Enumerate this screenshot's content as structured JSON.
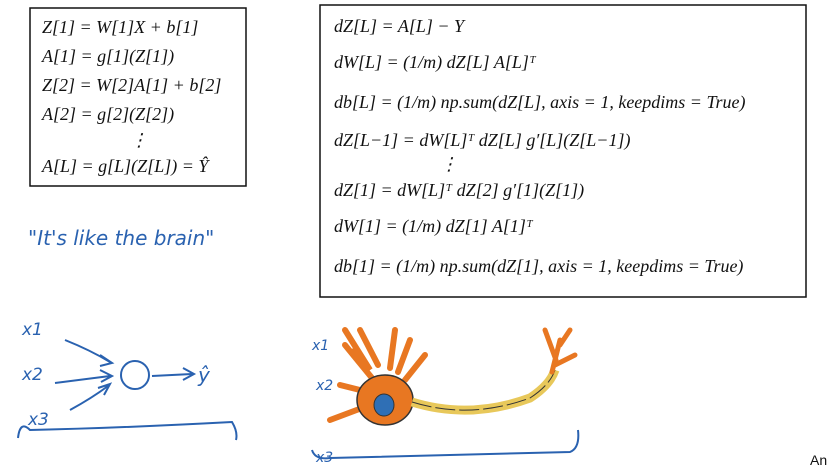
{
  "forward": {
    "lines": [
      "Z[1] = W[1]X + b[1]",
      "A[1] = g[1](Z[1])",
      "Z[2] = W[2]A[1] + b[2]",
      "A[2] = g[2](Z[2])",
      "⋮",
      "A[L] = g[L](Z[L]) = Ŷ"
    ]
  },
  "backward": {
    "lines": [
      "dZ[L] = A[L] − Y",
      "dW[L] = (1/m) dZ[L] A[L]ᵀ",
      "db[L] = (1/m) np.sum(dZ[L], axis = 1, keepdims = True)",
      "dZ[L−1] = dW[L]ᵀ dZ[L] g′[L](Z[L−1])",
      "⋮",
      "dZ[1] = dW[L]ᵀ dZ[2] g′[1](Z[1])",
      "dW[1] = (1/m) dZ[1] A[1]ᵀ",
      "db[1] = (1/m) np.sum(dZ[1], axis = 1, keepdims = True)"
    ]
  },
  "note": "\"It's like the brain\"",
  "network": {
    "inputs": [
      "x1",
      "x2",
      "x3"
    ],
    "output": "ŷ"
  },
  "neuron": {
    "inputs": [
      "x1",
      "x2",
      "x3"
    ]
  },
  "footer": "An"
}
